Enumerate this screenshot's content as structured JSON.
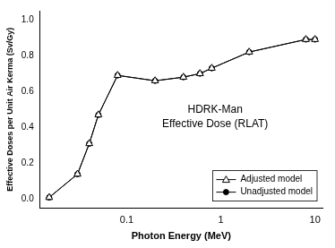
{
  "chart_data": {
    "type": "line",
    "x_label": "Photon Energy (MeV)",
    "y_label": "Effective Doses per Unit Air Kerma (Sv/Gy)",
    "annotations": [
      "HDRK-Man",
      "Effective Dose (RLAT)"
    ],
    "x": [
      0.015,
      0.03,
      0.04,
      0.05,
      0.08,
      0.2,
      0.4,
      0.6,
      0.8,
      2,
      8,
      10
    ],
    "series": [
      {
        "name": "Adjusted model",
        "color": "#000000",
        "marker": "triangle",
        "line_style": "solid",
        "values": [
          0.01,
          0.14,
          0.31,
          0.47,
          0.69,
          0.66,
          0.68,
          0.7,
          0.73,
          0.82,
          0.89,
          0.89
        ]
      },
      {
        "name": "Unadjusted model",
        "color": "#000000",
        "marker": "circle",
        "line_style": "solid",
        "values": [
          0.01,
          0.14,
          0.31,
          0.47,
          0.69,
          0.66,
          0.68,
          0.7,
          0.73,
          0.82,
          0.89,
          0.89
        ]
      }
    ],
    "log": "x",
    "xlim": [
      0.012,
      12
    ],
    "xticks": [
      0.1,
      1,
      10
    ],
    "ylim": [
      -0.05,
      1.05
    ],
    "yticks": [
      {
        "value": 0,
        "label": "0.0"
      },
      0.2,
      0.4,
      0.6,
      0.8,
      {
        "value": 1,
        "label": "1.0"
      }
    ],
    "grid": false,
    "legend": "bottom right"
  }
}
